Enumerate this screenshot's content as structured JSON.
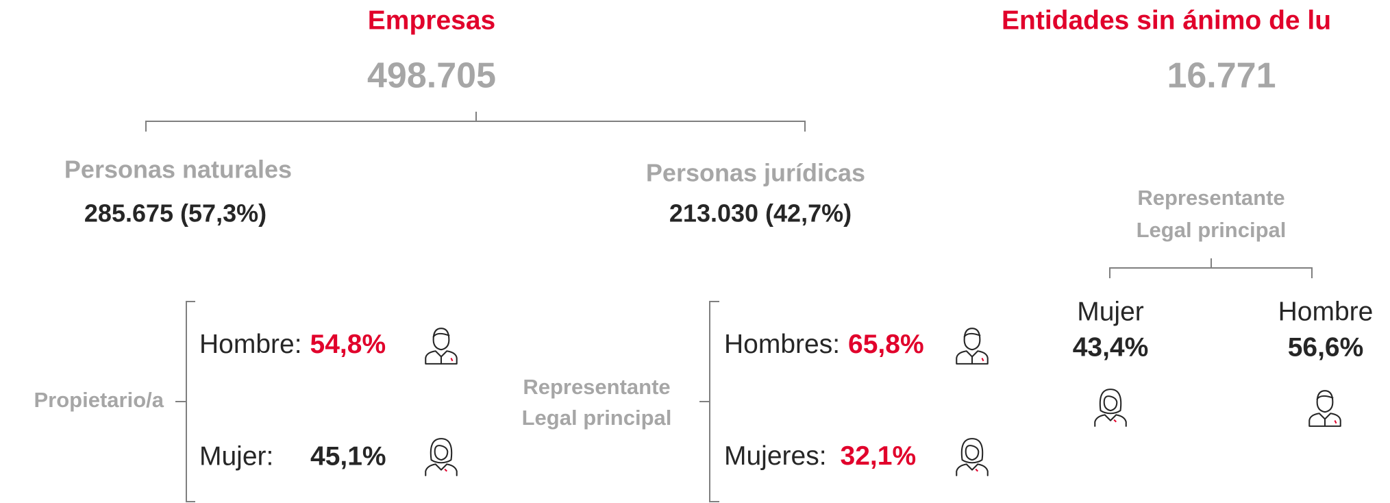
{
  "empresas": {
    "title": "Empresas",
    "total": "498.705",
    "naturales": {
      "label": "Personas naturales",
      "value": "285.675 (57,3%)",
      "group": "Propietario/a",
      "hombre": {
        "label": "Hombre:",
        "value": "54,8%"
      },
      "mujer": {
        "label": "Mujer:",
        "value": "45,1%"
      }
    },
    "juridicas": {
      "label": "Personas jurídicas",
      "value": "213.030 (42,7%)",
      "group": [
        "Representante",
        "Legal principal"
      ],
      "hombre": {
        "label": "Hombres:",
        "value": "65,8%"
      },
      "mujer": {
        "label": "Mujeres:",
        "value": "32,1%"
      }
    }
  },
  "entidades": {
    "title": "Entidades sin ánimo de lu",
    "total": "16.771",
    "group": [
      "Representante",
      "Legal principal"
    ],
    "mujer": {
      "label": "Mujer",
      "value": "43,4%"
    },
    "hombre": {
      "label": "Hombre",
      "value": "56,6%"
    }
  }
}
